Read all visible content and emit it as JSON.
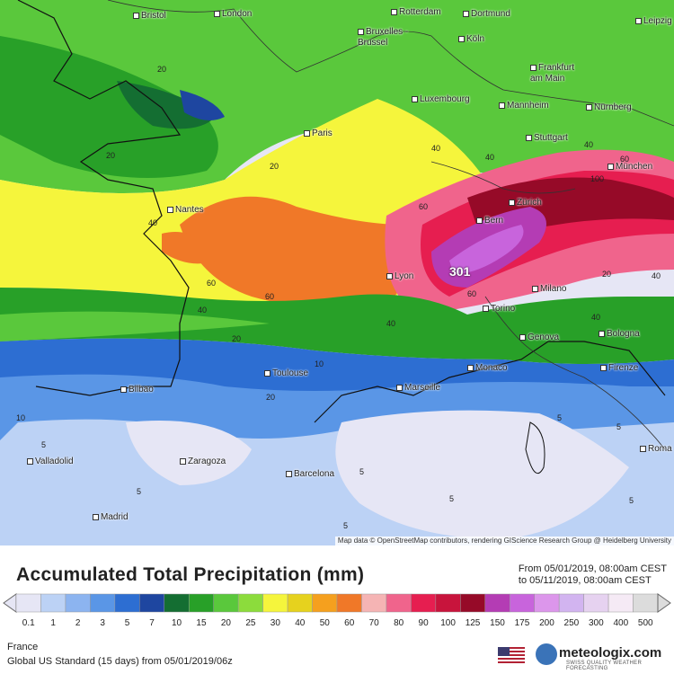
{
  "map": {
    "attribution": "Map data © OpenStreetMap contributors, rendering GIScience Research Group @ Heidelberg University",
    "peak_value": "301",
    "cities": [
      {
        "name": "Bristol"
      },
      {
        "name": "London"
      },
      {
        "name": "Rotterdam"
      },
      {
        "name": "Dortmund"
      },
      {
        "name": "Bruxelles - Brussel"
      },
      {
        "name": "Köln"
      },
      {
        "name": "Leipzig"
      },
      {
        "name": "Frankfurt am Main"
      },
      {
        "name": "Luxembourg"
      },
      {
        "name": "Mannheim"
      },
      {
        "name": "Nürnberg"
      },
      {
        "name": "Paris"
      },
      {
        "name": "Stuttgart"
      },
      {
        "name": "München"
      },
      {
        "name": "Zürich"
      },
      {
        "name": "Bern"
      },
      {
        "name": "Nantes"
      },
      {
        "name": "Lyon"
      },
      {
        "name": "Milano"
      },
      {
        "name": "Torino"
      },
      {
        "name": "Genova"
      },
      {
        "name": "Bologna"
      },
      {
        "name": "Toulouse"
      },
      {
        "name": "Monaco"
      },
      {
        "name": "Marseille"
      },
      {
        "name": "Firenze"
      },
      {
        "name": "Bilbao"
      },
      {
        "name": "Valladolid"
      },
      {
        "name": "Zaragoza"
      },
      {
        "name": "Barcelona"
      },
      {
        "name": "Madrid"
      },
      {
        "name": "Roma"
      }
    ],
    "contour_labels": [
      "20",
      "20",
      "20",
      "40",
      "40",
      "60",
      "60",
      "60",
      "40",
      "20",
      "40",
      "20",
      "100",
      "40",
      "20",
      "40",
      "40",
      "5",
      "5",
      "5",
      "5",
      "5",
      "5",
      "5",
      "5",
      "10",
      "10",
      "60",
      "60",
      "40"
    ]
  },
  "header": {
    "title": "Accumulated Total Precipitation (mm)",
    "from": "From 05/01/2019, 08:00am CEST",
    "to": "to 05/11/2019, 08:00am CEST"
  },
  "legend": {
    "colors": [
      "#e6e6f5",
      "#bcd2f5",
      "#8cb4f0",
      "#5a96e6",
      "#2d6ed2",
      "#1e46a0",
      "#146e32",
      "#28a028",
      "#5ac83c",
      "#8cdc3c",
      "#f5f53c",
      "#e6d21e",
      "#f5a01e",
      "#f07828",
      "#f5b4b4",
      "#f0648c",
      "#e61e50",
      "#c8143c",
      "#960a28",
      "#b43cb4",
      "#c864dc",
      "#dc96eb",
      "#d2b4f0",
      "#e6d2f0",
      "#f5eaf5",
      "#dcdcdc"
    ],
    "ticks": [
      "0.1",
      "1",
      "2",
      "3",
      "5",
      "7",
      "10",
      "15",
      "20",
      "25",
      "30",
      "40",
      "50",
      "60",
      "70",
      "80",
      "90",
      "100",
      "125",
      "150",
      "175",
      "200",
      "250",
      "300",
      "400",
      "500"
    ]
  },
  "footer": {
    "region": "France",
    "model": "Global US Standard (15 days) from 05/01/2019/06z",
    "brand": "meteologix.com",
    "tagline": "SWISS QUALITY WEATHER FORECASTING"
  }
}
